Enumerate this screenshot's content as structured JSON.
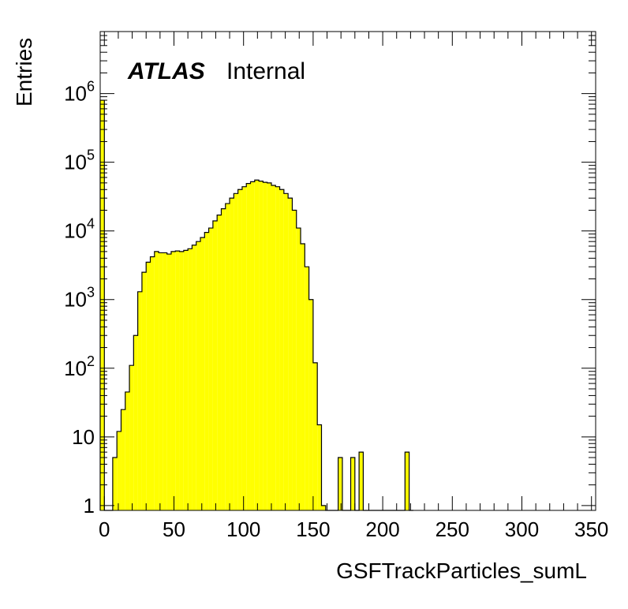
{
  "chart_data": {
    "type": "bar",
    "xlabel": "GSFTrackParticles_sumL",
    "ylabel": "Entries",
    "annotation": {
      "bold": "ATLAS",
      "text": "Internal"
    },
    "xlim": [
      -3,
      353
    ],
    "ylim": [
      0.85,
      8000000
    ],
    "yscale": "log",
    "bin_width": 3,
    "x_ticks": [
      0,
      50,
      100,
      150,
      200,
      250,
      300,
      350
    ],
    "y_ticks": [
      {
        "value": 1,
        "base": "1",
        "exp": ""
      },
      {
        "value": 10,
        "base": "10",
        "exp": ""
      },
      {
        "value": 100,
        "base": "10",
        "exp": "2"
      },
      {
        "value": 1000,
        "base": "10",
        "exp": "3"
      },
      {
        "value": 10000,
        "base": "10",
        "exp": "4"
      },
      {
        "value": 100000,
        "base": "10",
        "exp": "5"
      },
      {
        "value": 1000000,
        "base": "10",
        "exp": "6"
      }
    ],
    "fill_color": "#ffff00",
    "line_color": "#000000",
    "bins": [
      {
        "x": -3,
        "y": 800000
      },
      {
        "x": 0,
        "y": 0
      },
      {
        "x": 3,
        "y": 0
      },
      {
        "x": 6,
        "y": 5
      },
      {
        "x": 9,
        "y": 12
      },
      {
        "x": 12,
        "y": 25
      },
      {
        "x": 15,
        "y": 45
      },
      {
        "x": 18,
        "y": 110
      },
      {
        "x": 21,
        "y": 300
      },
      {
        "x": 24,
        "y": 1300
      },
      {
        "x": 27,
        "y": 2500
      },
      {
        "x": 30,
        "y": 3500
      },
      {
        "x": 33,
        "y": 4200
      },
      {
        "x": 36,
        "y": 5000
      },
      {
        "x": 39,
        "y": 4800
      },
      {
        "x": 42,
        "y": 4800
      },
      {
        "x": 45,
        "y": 4600
      },
      {
        "x": 48,
        "y": 5000
      },
      {
        "x": 51,
        "y": 5100
      },
      {
        "x": 54,
        "y": 5000
      },
      {
        "x": 57,
        "y": 5200
      },
      {
        "x": 60,
        "y": 5500
      },
      {
        "x": 63,
        "y": 6200
      },
      {
        "x": 66,
        "y": 7000
      },
      {
        "x": 69,
        "y": 8000
      },
      {
        "x": 72,
        "y": 9500
      },
      {
        "x": 75,
        "y": 11000
      },
      {
        "x": 78,
        "y": 14000
      },
      {
        "x": 81,
        "y": 17000
      },
      {
        "x": 84,
        "y": 21000
      },
      {
        "x": 87,
        "y": 25000
      },
      {
        "x": 90,
        "y": 30000
      },
      {
        "x": 93,
        "y": 35000
      },
      {
        "x": 96,
        "y": 40000
      },
      {
        "x": 99,
        "y": 44000
      },
      {
        "x": 102,
        "y": 49000
      },
      {
        "x": 105,
        "y": 52000
      },
      {
        "x": 108,
        "y": 55000
      },
      {
        "x": 111,
        "y": 53000
      },
      {
        "x": 114,
        "y": 51000
      },
      {
        "x": 117,
        "y": 50000
      },
      {
        "x": 120,
        "y": 46000
      },
      {
        "x": 123,
        "y": 44000
      },
      {
        "x": 126,
        "y": 40000
      },
      {
        "x": 129,
        "y": 35000
      },
      {
        "x": 132,
        "y": 30000
      },
      {
        "x": 135,
        "y": 20000
      },
      {
        "x": 138,
        "y": 11000
      },
      {
        "x": 141,
        "y": 6500
      },
      {
        "x": 144,
        "y": 3000
      },
      {
        "x": 147,
        "y": 1000
      },
      {
        "x": 150,
        "y": 120
      },
      {
        "x": 153,
        "y": 15
      },
      {
        "x": 156,
        "y": 1
      },
      {
        "x": 159,
        "y": 0
      },
      {
        "x": 162,
        "y": 0
      },
      {
        "x": 165,
        "y": 0
      },
      {
        "x": 168,
        "y": 5
      },
      {
        "x": 171,
        "y": 0
      },
      {
        "x": 174,
        "y": 0
      },
      {
        "x": 177,
        "y": 5
      },
      {
        "x": 180,
        "y": 0
      },
      {
        "x": 183,
        "y": 6
      },
      {
        "x": 186,
        "y": 0
      },
      {
        "x": 189,
        "y": 0
      },
      {
        "x": 192,
        "y": 0
      },
      {
        "x": 195,
        "y": 0
      },
      {
        "x": 198,
        "y": 0
      },
      {
        "x": 201,
        "y": 0
      },
      {
        "x": 204,
        "y": 0
      },
      {
        "x": 207,
        "y": 0
      },
      {
        "x": 210,
        "y": 0
      },
      {
        "x": 213,
        "y": 0
      },
      {
        "x": 216,
        "y": 6
      },
      {
        "x": 219,
        "y": 0
      }
    ]
  }
}
